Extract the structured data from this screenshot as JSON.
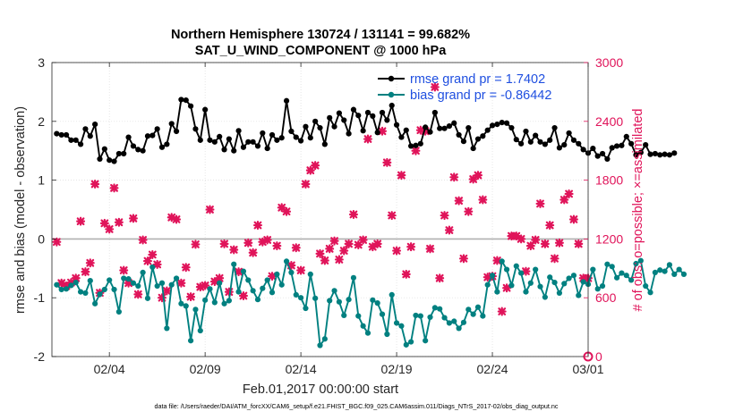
{
  "chart_data": {
    "type": "line",
    "title": "Northern Hemisphere 130724 / 131141 = 99.682%",
    "subtitle": "SAT_U_WIND_COMPONENT @ 1000 hPa",
    "xlabel": "Feb.01,2017 00:00:00 start",
    "ylabel": "rmse and bias (model - observation)",
    "y2label": "# of obs: o=possible; ×=assimilated",
    "footer": "data file: /Users/raeder/DAI/ATM_forcXX/CAM6_setup/f.e21.FHIST_BGC.f09_025.CAM6assim.011/Diags_NTrS_2017-02/obs_diag_output.nc",
    "xlim": [
      1,
      29
    ],
    "ylim": [
      -2,
      3
    ],
    "y2lim": [
      0,
      3000
    ],
    "x_ticks": [
      {
        "v": 4,
        "label": "02/04"
      },
      {
        "v": 9,
        "label": "02/09"
      },
      {
        "v": 14,
        "label": "02/14"
      },
      {
        "v": 19,
        "label": "02/19"
      },
      {
        "v": 24,
        "label": "02/24"
      },
      {
        "v": 29,
        "label": "03/01"
      }
    ],
    "y_ticks": [
      -2,
      -1,
      0,
      1,
      2,
      3
    ],
    "y2_ticks": [
      0,
      600,
      1200,
      1800,
      2400,
      3000
    ],
    "x_start": 1.25,
    "x_step": 0.25,
    "series": [
      {
        "name": "rmse grand pr = 1.7402",
        "color": "#000000",
        "values": [
          1.79,
          1.77,
          1.77,
          1.68,
          1.68,
          1.61,
          1.87,
          1.75,
          1.95,
          1.36,
          1.53,
          1.34,
          1.32,
          1.45,
          1.45,
          1.73,
          1.58,
          1.52,
          1.5,
          1.75,
          1.76,
          1.87,
          1.56,
          1.61,
          1.96,
          1.83,
          2.37,
          2.36,
          2.26,
          1.87,
          1.68,
          2.2,
          1.68,
          1.65,
          1.74,
          1.52,
          1.7,
          1.5,
          1.84,
          1.56,
          1.65,
          1.65,
          1.58,
          1.8,
          1.54,
          1.77,
          1.68,
          1.72,
          2.35,
          1.83,
          1.73,
          1.67,
          1.91,
          1.72,
          2.0,
          1.89,
          1.61,
          2.06,
          1.91,
          2.14,
          2.02,
          1.79,
          2.2,
          2.1,
          1.84,
          2.15,
          2.09,
          1.81,
          2.15,
          2.02,
          2.27,
          1.94,
          1.73,
          1.85,
          1.58,
          1.59,
          1.62,
          1.9,
          1.82,
          2.15,
          1.88,
          1.88,
          1.92,
          1.97,
          1.77,
          1.66,
          1.89,
          1.54,
          1.7,
          1.75,
          1.85,
          1.93,
          1.95,
          1.98,
          1.97,
          1.89,
          1.69,
          1.62,
          1.83,
          1.65,
          1.76,
          1.65,
          1.61,
          1.68,
          1.89,
          1.55,
          1.6,
          1.8,
          1.68,
          1.62,
          1.52,
          1.46,
          1.54,
          1.41,
          1.45,
          1.36,
          1.55,
          1.58,
          1.59,
          1.74,
          1.62,
          1.43,
          1.47,
          1.6,
          1.44,
          1.45,
          1.43,
          1.44,
          1.43,
          1.46
        ]
      },
      {
        "name": "bias grand pr = -0.86442",
        "color": "#008080",
        "values": [
          -0.78,
          -0.86,
          -0.85,
          -0.79,
          -0.74,
          -0.9,
          -0.92,
          -0.71,
          -1.1,
          -0.94,
          -0.86,
          -0.7,
          -0.86,
          -1.24,
          -0.67,
          -0.68,
          -0.75,
          -0.8,
          -0.57,
          -1.01,
          -0.48,
          -0.8,
          -0.75,
          -1.52,
          -0.78,
          -0.67,
          -1.1,
          -1.14,
          -1.73,
          -1.2,
          -1.56,
          -1.04,
          -0.85,
          -1.08,
          -0.75,
          -1.1,
          -1.05,
          -0.43,
          -0.9,
          -0.55,
          -0.7,
          -0.88,
          -1.03,
          -0.84,
          -0.7,
          -0.91,
          -0.6,
          -0.78,
          -0.38,
          -0.57,
          -0.95,
          -1.0,
          -1.18,
          -0.6,
          -1.01,
          -1.81,
          -1.7,
          -1.05,
          -0.88,
          -1.07,
          -1.3,
          -1.03,
          -0.66,
          -1.31,
          -1.48,
          -1.6,
          -1.04,
          -1.09,
          -1.28,
          -1.62,
          -0.95,
          -1.43,
          -1.48,
          -1.8,
          -1.75,
          -1.3,
          -1.31,
          -1.73,
          -1.33,
          -1.17,
          -1.19,
          -1.34,
          -1.43,
          -1.4,
          -1.52,
          -1.42,
          -1.2,
          -1.28,
          -1.16,
          -1.31,
          -0.78,
          -0.62,
          -0.9,
          -0.38,
          -0.52,
          -0.79,
          -0.46,
          -0.58,
          -0.9,
          -0.75,
          -0.52,
          -0.81,
          -0.99,
          -0.65,
          -0.74,
          -0.92,
          -0.76,
          -0.67,
          -0.62,
          -0.96,
          -0.73,
          -0.77,
          -0.52,
          -0.85,
          -0.8,
          -0.43,
          -0.47,
          -0.66,
          -0.58,
          -0.62,
          -0.7,
          -0.42,
          -0.37,
          -0.8,
          -0.91,
          -0.57,
          -0.53,
          -0.55,
          -0.44,
          -0.6,
          -0.52,
          -0.6
        ]
      }
    ],
    "obs_counts": {
      "name": "assimilated",
      "color": "#e0145a",
      "marker": "×",
      "values": [
        [
          1.25,
          1170
        ],
        [
          1.5,
          750
        ],
        [
          1.75,
          720
        ],
        [
          2.0,
          755
        ],
        [
          2.25,
          800
        ],
        [
          2.5,
          1380
        ],
        [
          2.75,
          865
        ],
        [
          3.0,
          955
        ],
        [
          3.25,
          1760
        ],
        [
          3.5,
          650
        ],
        [
          3.75,
          1360
        ],
        [
          4.0,
          1300
        ],
        [
          4.25,
          1720
        ],
        [
          4.5,
          1370
        ],
        [
          4.75,
          880
        ],
        [
          5.0,
          750
        ],
        [
          5.25,
          1410
        ],
        [
          5.5,
          635
        ],
        [
          5.75,
          1190
        ],
        [
          6.0,
          975
        ],
        [
          6.25,
          1040
        ],
        [
          6.5,
          940
        ],
        [
          6.75,
          600
        ],
        [
          7.0,
          670
        ],
        [
          7.25,
          1420
        ],
        [
          7.5,
          1400
        ],
        [
          7.75,
          750
        ],
        [
          8.0,
          910
        ],
        [
          8.25,
          610
        ],
        [
          8.5,
          1145
        ],
        [
          8.75,
          710
        ],
        [
          9.0,
          725
        ],
        [
          9.25,
          1500
        ],
        [
          9.5,
          765
        ],
        [
          9.75,
          800
        ],
        [
          10.0,
          1150
        ],
        [
          10.25,
          660
        ],
        [
          10.5,
          1090
        ],
        [
          10.75,
          865
        ],
        [
          11.0,
          620
        ],
        [
          11.25,
          1160
        ],
        [
          11.5,
          1060
        ],
        [
          11.75,
          1340
        ],
        [
          12.0,
          1170
        ],
        [
          12.25,
          1190
        ],
        [
          12.5,
          820
        ],
        [
          12.75,
          1130
        ],
        [
          13.0,
          1520
        ],
        [
          13.25,
          1480
        ],
        [
          13.5,
          930
        ],
        [
          13.75,
          1110
        ],
        [
          14.0,
          880
        ],
        [
          14.25,
          1760
        ],
        [
          14.5,
          1900
        ],
        [
          14.75,
          1950
        ],
        [
          15.0,
          1050
        ],
        [
          15.25,
          980
        ],
        [
          15.5,
          1100
        ],
        [
          15.75,
          1180
        ],
        [
          16.0,
          990
        ],
        [
          16.25,
          1080
        ],
        [
          16.5,
          1150
        ],
        [
          16.75,
          1450
        ],
        [
          17.0,
          1140
        ],
        [
          17.25,
          1190
        ],
        [
          17.5,
          2220
        ],
        [
          17.75,
          1120
        ],
        [
          18.0,
          1150
        ],
        [
          18.25,
          2300
        ],
        [
          18.5,
          1980
        ],
        [
          18.75,
          1440
        ],
        [
          19.0,
          1080
        ],
        [
          19.25,
          1850
        ],
        [
          19.5,
          840
        ],
        [
          19.75,
          1120
        ],
        [
          20.0,
          2100
        ],
        [
          20.25,
          2310
        ],
        [
          20.5,
          2300
        ],
        [
          20.75,
          1100
        ],
        [
          21.0,
          2750
        ],
        [
          21.25,
          800
        ],
        [
          21.5,
          1440
        ],
        [
          21.75,
          1290
        ],
        [
          22.0,
          1830
        ],
        [
          22.25,
          1590
        ],
        [
          22.5,
          1000
        ],
        [
          22.75,
          1480
        ],
        [
          23.0,
          1810
        ],
        [
          23.25,
          1850
        ],
        [
          23.5,
          1600
        ],
        [
          23.75,
          810
        ],
        [
          24.0,
          820
        ],
        [
          24.25,
          980
        ],
        [
          24.5,
          460
        ],
        [
          24.75,
          700
        ],
        [
          25.0,
          1230
        ],
        [
          25.25,
          1230
        ],
        [
          25.5,
          1200
        ],
        [
          25.75,
          870
        ],
        [
          26.0,
          1130
        ],
        [
          26.25,
          1190
        ],
        [
          26.5,
          1560
        ],
        [
          26.75,
          1150
        ],
        [
          27.0,
          1340
        ],
        [
          27.25,
          1000
        ],
        [
          27.5,
          1160
        ],
        [
          27.75,
          1600
        ],
        [
          28.0,
          1660
        ],
        [
          28.25,
          1400
        ],
        [
          28.5,
          1150
        ],
        [
          28.75,
          800
        ],
        [
          29.0,
          800
        ]
      ]
    }
  }
}
